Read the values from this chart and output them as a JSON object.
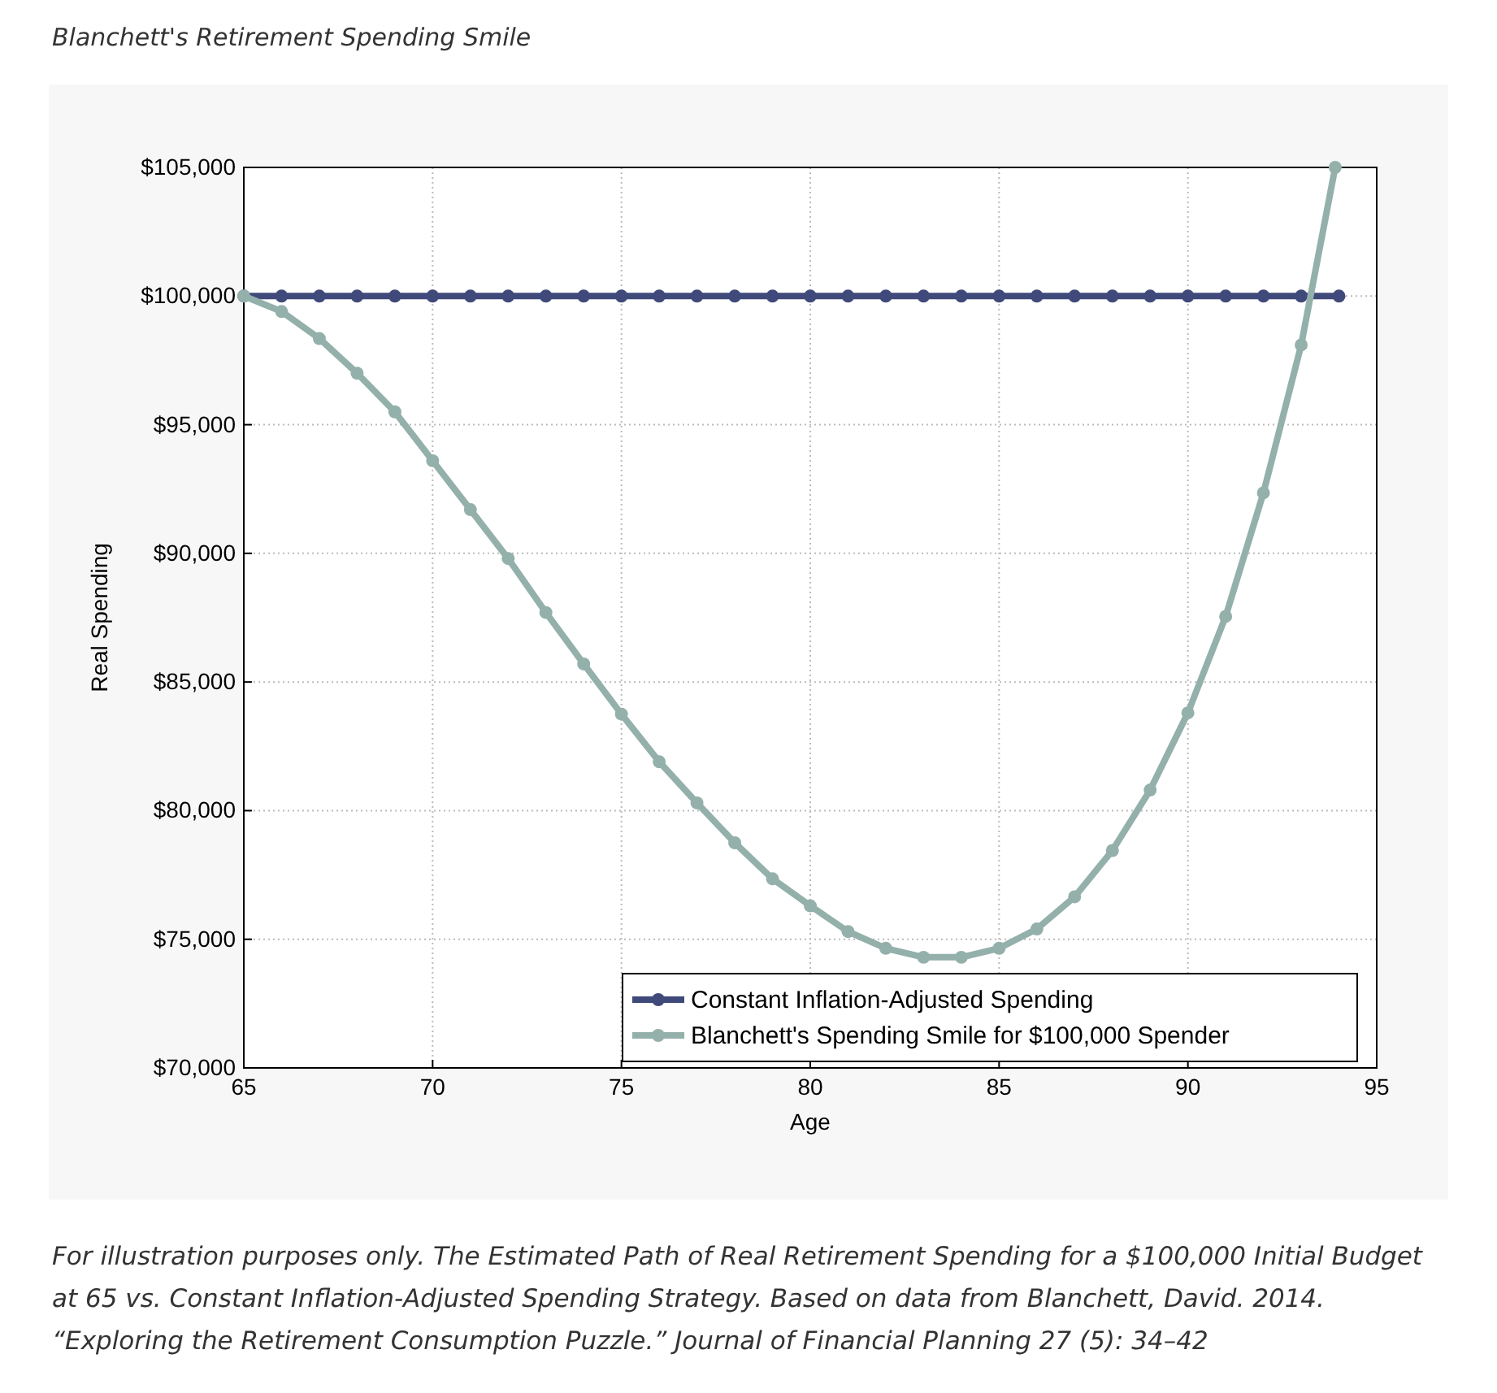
{
  "chart_data": {
    "type": "line",
    "title": "Blanchett's Retirement Spending Smile",
    "xlabel": "Age",
    "ylabel": "Real Spending",
    "annotations": [
      "For illustration purposes only. The Estimated Path of Real Retirement Spending for a $100,000 Initial Budget at 65 vs. Constant Inflation-Adjusted Spending Strategy. Based on data from Blanchett, David. 2014. “Exploring the Retirement Consumption Puzzle.” Journal of Financial Planning 27 (5): 34–42"
    ],
    "series": [
      {
        "name": "Constant Inflation-Adjusted Spending",
        "color": "#3f4a7a",
        "x": [
          65,
          66,
          67,
          68,
          69,
          70,
          71,
          72,
          73,
          74,
          75,
          76,
          77,
          78,
          79,
          80,
          81,
          82,
          83,
          84,
          85,
          86,
          87,
          88,
          89,
          90,
          91,
          92,
          93,
          94
        ],
        "values": [
          100000,
          100000,
          100000,
          100000,
          100000,
          100000,
          100000,
          100000,
          100000,
          100000,
          100000,
          100000,
          100000,
          100000,
          100000,
          100000,
          100000,
          100000,
          100000,
          100000,
          100000,
          100000,
          100000,
          100000,
          100000,
          100000,
          100000,
          100000,
          100000,
          100000
        ]
      },
      {
        "name": "Blanchett's Spending Smile for $100,000 Spender",
        "color": "#94b0aa",
        "x": [
          65,
          66,
          67,
          68,
          69,
          70,
          71,
          72,
          73,
          74,
          75,
          76,
          77,
          78,
          79,
          80,
          81,
          82,
          83,
          84,
          85,
          86,
          87,
          88,
          89,
          90,
          91,
          92,
          93,
          93.9
        ],
        "values": [
          100000,
          99400,
          98350,
          97000,
          95500,
          93600,
          91700,
          89800,
          87700,
          85700,
          83750,
          81900,
          80300,
          78750,
          77350,
          76300,
          75300,
          74650,
          74300,
          74300,
          74650,
          75400,
          76650,
          78450,
          80800,
          83800,
          87550,
          92350,
          98100,
          105000
        ]
      }
    ],
    "xlim": [
      65,
      95
    ],
    "xticks": [
      65,
      70,
      75,
      80,
      85,
      90,
      95
    ],
    "ylim": [
      70000,
      105000
    ],
    "yticks": [
      {
        "value": 70000,
        "label": "$70,000"
      },
      {
        "value": 75000,
        "label": "$75,000"
      },
      {
        "value": 80000,
        "label": "$80,000"
      },
      {
        "value": 85000,
        "label": "$85,000"
      },
      {
        "value": 90000,
        "label": "$90,000"
      },
      {
        "value": 95000,
        "label": "$95,000"
      },
      {
        "value": 100000,
        "label": "$100,000"
      },
      {
        "value": 105000,
        "label": "$105,000"
      }
    ],
    "grid": true,
    "legend": "bottom right",
    "marker": "circle",
    "line_style": "solid"
  }
}
